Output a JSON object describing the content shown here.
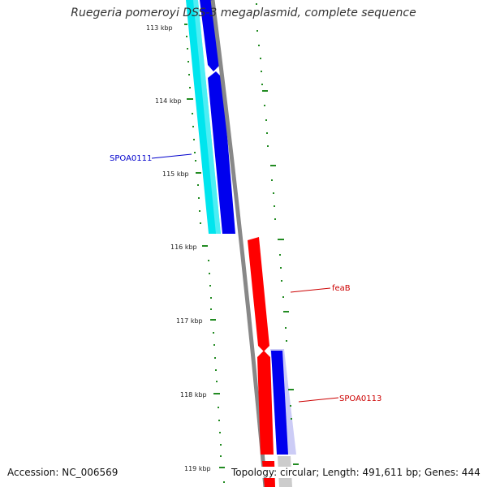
{
  "map": {
    "title": "Ruegeria pomeroyi DSS-3 megaplasmid, complete sequence",
    "accession": "Accession: NC_006569",
    "summary": "Topology: circular; Length: 491,611 bp; Genes: 444",
    "ticks": [
      "113 kbp",
      "114 kbp",
      "115 kbp",
      "116 kbp",
      "117 kbp",
      "118 kbp",
      "119 kbp"
    ],
    "genes": [
      {
        "label": "SPOA0111",
        "color": "#0000cc"
      },
      {
        "label": "feaB",
        "color": "#cc0000"
      },
      {
        "label": "SPOA0113",
        "color": "#cc0000"
      }
    ],
    "colors": {
      "cyan_track": "#00e5ee",
      "blue_track": "#0000ee",
      "red_track": "#ff0000",
      "backbone": "#888888",
      "tick_marks": "#228b22"
    }
  }
}
